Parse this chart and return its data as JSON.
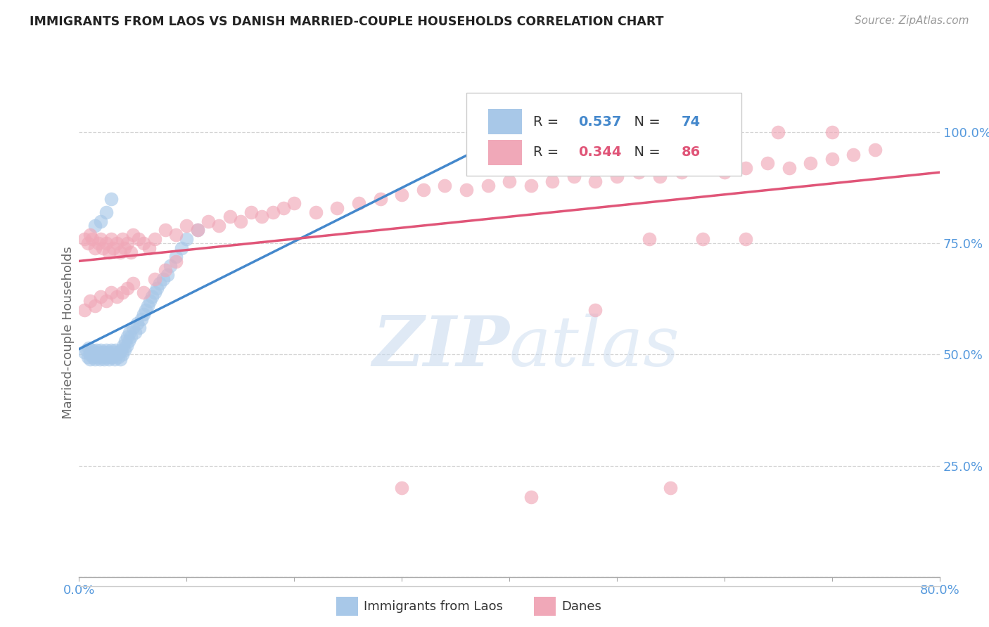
{
  "title": "IMMIGRANTS FROM LAOS VS DANISH MARRIED-COUPLE HOUSEHOLDS CORRELATION CHART",
  "source": "Source: ZipAtlas.com",
  "ylabel": "Married-couple Households",
  "xlim": [
    0.0,
    0.8
  ],
  "ylim": [
    0.0,
    1.1
  ],
  "background_color": "#ffffff",
  "grid_color": "#d0d0d0",
  "blue_color": "#a8c8e8",
  "pink_color": "#f0a8b8",
  "blue_line_color": "#4488cc",
  "pink_line_color": "#e05578",
  "R_blue": 0.537,
  "N_blue": 74,
  "R_pink": 0.344,
  "N_pink": 86,
  "watermark_zip": "ZIP",
  "watermark_atlas": "atlas",
  "legend_items": [
    "Immigrants from Laos",
    "Danes"
  ],
  "blue_scatter_x": [
    0.005,
    0.007,
    0.008,
    0.009,
    0.01,
    0.01,
    0.011,
    0.012,
    0.013,
    0.014,
    0.015,
    0.015,
    0.016,
    0.017,
    0.018,
    0.019,
    0.02,
    0.02,
    0.021,
    0.022,
    0.023,
    0.024,
    0.025,
    0.025,
    0.026,
    0.027,
    0.028,
    0.029,
    0.03,
    0.03,
    0.031,
    0.032,
    0.033,
    0.034,
    0.035,
    0.036,
    0.037,
    0.038,
    0.039,
    0.04,
    0.041,
    0.042,
    0.043,
    0.044,
    0.045,
    0.046,
    0.047,
    0.048,
    0.05,
    0.052,
    0.054,
    0.056,
    0.058,
    0.06,
    0.062,
    0.064,
    0.066,
    0.068,
    0.07,
    0.072,
    0.075,
    0.078,
    0.082,
    0.085,
    0.09,
    0.095,
    0.1,
    0.11,
    0.015,
    0.02,
    0.025,
    0.03,
    0.42,
    0.45
  ],
  "blue_scatter_y": [
    0.505,
    0.51,
    0.495,
    0.515,
    0.5,
    0.49,
    0.505,
    0.51,
    0.495,
    0.5,
    0.49,
    0.505,
    0.51,
    0.495,
    0.5,
    0.49,
    0.505,
    0.51,
    0.495,
    0.5,
    0.49,
    0.505,
    0.51,
    0.495,
    0.5,
    0.505,
    0.49,
    0.495,
    0.51,
    0.5,
    0.495,
    0.505,
    0.49,
    0.51,
    0.5,
    0.495,
    0.505,
    0.49,
    0.51,
    0.5,
    0.52,
    0.51,
    0.53,
    0.52,
    0.54,
    0.53,
    0.55,
    0.54,
    0.56,
    0.55,
    0.57,
    0.56,
    0.58,
    0.59,
    0.6,
    0.61,
    0.62,
    0.63,
    0.64,
    0.65,
    0.66,
    0.67,
    0.68,
    0.7,
    0.72,
    0.74,
    0.76,
    0.78,
    0.79,
    0.8,
    0.82,
    0.85,
    0.96,
    1.0
  ],
  "pink_scatter_x": [
    0.005,
    0.008,
    0.01,
    0.012,
    0.015,
    0.018,
    0.02,
    0.022,
    0.025,
    0.028,
    0.03,
    0.032,
    0.035,
    0.038,
    0.04,
    0.042,
    0.045,
    0.048,
    0.05,
    0.055,
    0.06,
    0.065,
    0.07,
    0.08,
    0.09,
    0.1,
    0.11,
    0.12,
    0.13,
    0.14,
    0.15,
    0.16,
    0.17,
    0.18,
    0.19,
    0.2,
    0.22,
    0.24,
    0.26,
    0.28,
    0.3,
    0.32,
    0.34,
    0.36,
    0.38,
    0.4,
    0.42,
    0.44,
    0.46,
    0.48,
    0.5,
    0.52,
    0.54,
    0.56,
    0.58,
    0.6,
    0.62,
    0.64,
    0.66,
    0.68,
    0.7,
    0.72,
    0.74,
    0.005,
    0.01,
    0.015,
    0.02,
    0.025,
    0.03,
    0.035,
    0.04,
    0.045,
    0.05,
    0.06,
    0.07,
    0.08,
    0.09,
    0.3,
    0.42,
    0.55,
    0.65,
    0.7,
    0.62,
    0.58,
    0.53,
    0.48
  ],
  "pink_scatter_y": [
    0.76,
    0.75,
    0.77,
    0.76,
    0.74,
    0.75,
    0.76,
    0.74,
    0.75,
    0.73,
    0.76,
    0.74,
    0.75,
    0.73,
    0.76,
    0.74,
    0.75,
    0.73,
    0.77,
    0.76,
    0.75,
    0.74,
    0.76,
    0.78,
    0.77,
    0.79,
    0.78,
    0.8,
    0.79,
    0.81,
    0.8,
    0.82,
    0.81,
    0.82,
    0.83,
    0.84,
    0.82,
    0.83,
    0.84,
    0.85,
    0.86,
    0.87,
    0.88,
    0.87,
    0.88,
    0.89,
    0.88,
    0.89,
    0.9,
    0.89,
    0.9,
    0.91,
    0.9,
    0.91,
    0.92,
    0.91,
    0.92,
    0.93,
    0.92,
    0.93,
    0.94,
    0.95,
    0.96,
    0.6,
    0.62,
    0.61,
    0.63,
    0.62,
    0.64,
    0.63,
    0.64,
    0.65,
    0.66,
    0.64,
    0.67,
    0.69,
    0.71,
    0.2,
    0.18,
    0.2,
    1.0,
    1.0,
    0.76,
    0.76,
    0.76,
    0.6
  ]
}
